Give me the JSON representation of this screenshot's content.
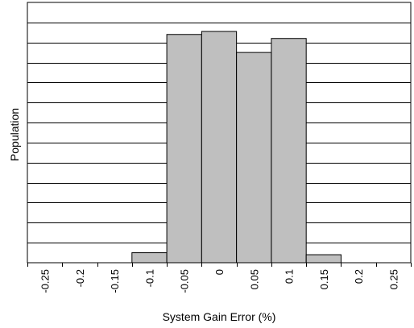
{
  "chart_data": {
    "type": "bar",
    "title": "",
    "xlabel": "System Gain Error (%)",
    "ylabel": "Population",
    "categories": [
      "-0.25",
      "-0.2",
      "-0.15",
      "-0.1",
      "-0.05",
      "0",
      "0.05",
      "0.1",
      "0.15",
      "0.2",
      "0.25"
    ],
    "bin_edges": [
      -0.25,
      -0.2,
      -0.15,
      -0.1,
      -0.05,
      0,
      0.05,
      0.1,
      0.15,
      0.2,
      0.25
    ],
    "values": [
      0,
      0,
      0,
      0.5,
      11.4,
      11.55,
      10.5,
      11.2,
      0.4,
      0,
      0
    ],
    "ylim": [
      0,
      13
    ],
    "y_gridlines": 13,
    "y_tick_labels_shown": false,
    "grid": "horizontal",
    "legend": "none",
    "colors": {
      "bar_fill": "#bfbfbf",
      "bar_stroke": "#000000",
      "grid": "#000000",
      "axis": "#000000"
    }
  }
}
